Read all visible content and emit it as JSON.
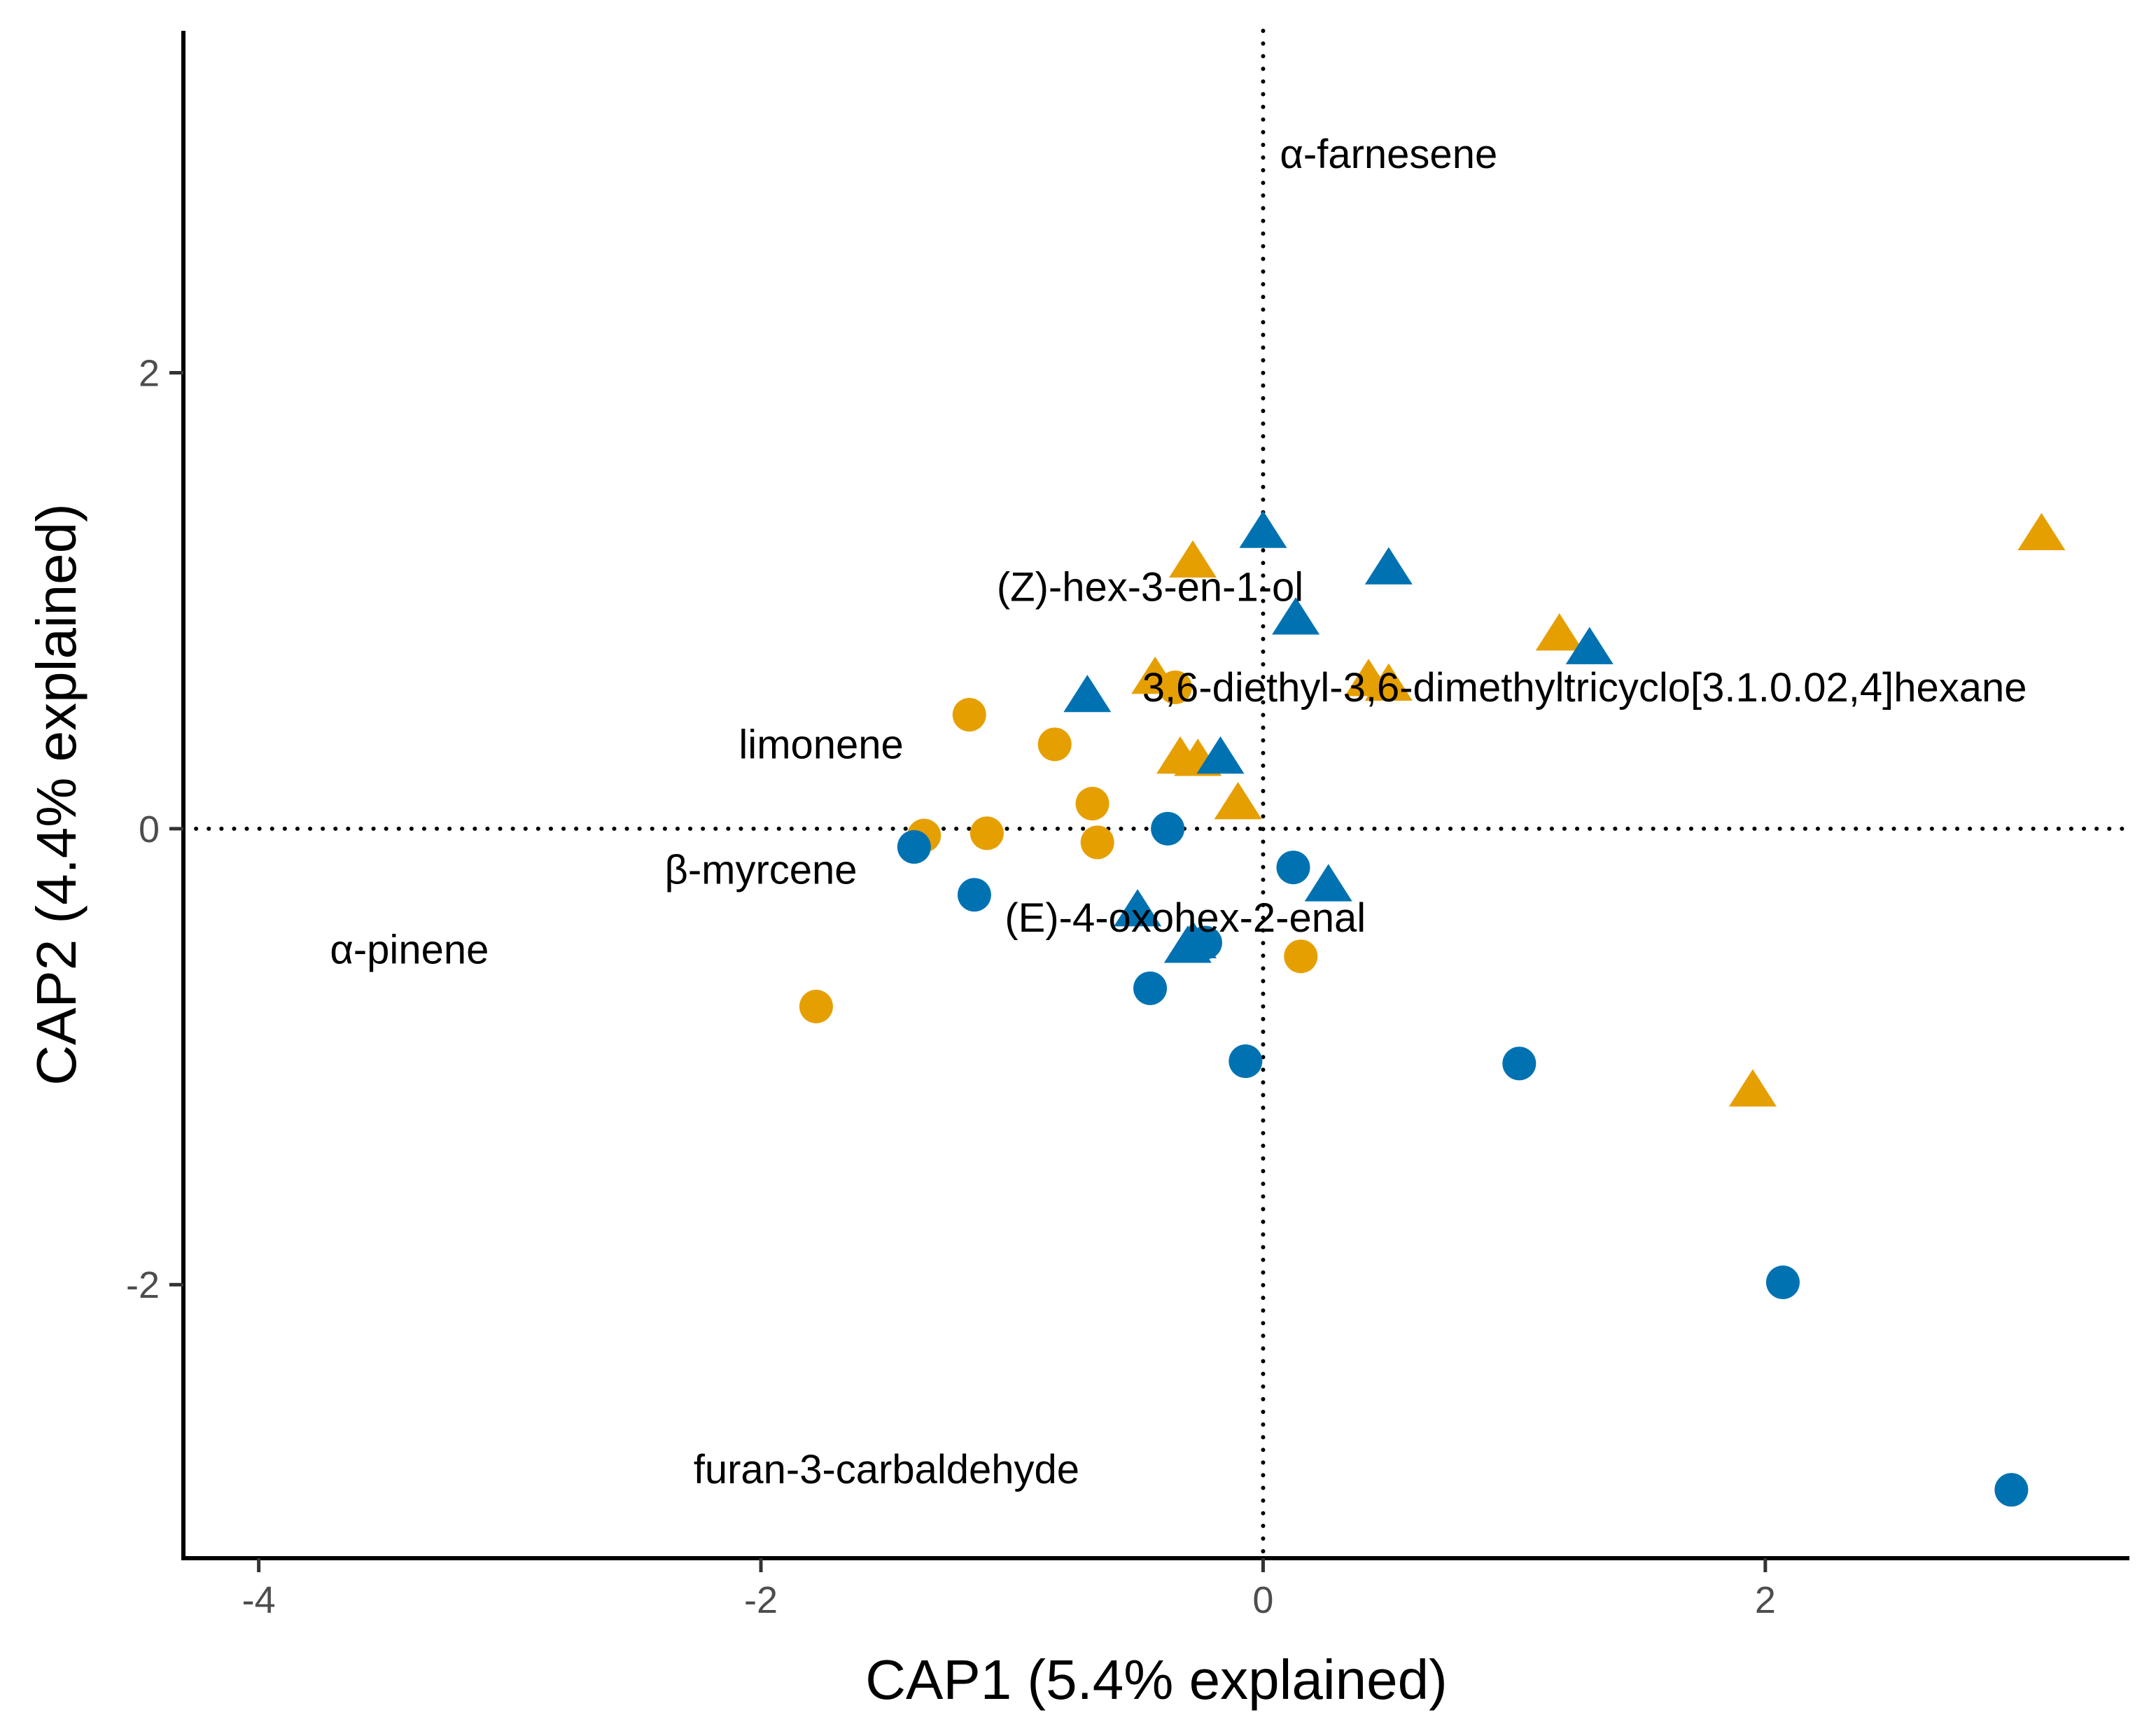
{
  "colors": {
    "orange": "#E69F00",
    "blue": "#0072B2",
    "axis": "#000000",
    "tick_text": "#4d4d4d"
  },
  "chart_data": {
    "type": "scatter",
    "title": "",
    "xlabel": "CAP1 (5.4% explained)",
    "ylabel": "CAP2 (4.4% explained)",
    "xlim": [
      -4.3,
      3.45
    ],
    "ylim": [
      -3.2,
      3.5
    ],
    "xticks": [
      -4,
      -2,
      0,
      2
    ],
    "xtick_labels": [
      "-4",
      "-2",
      "0",
      "2"
    ],
    "yticks": [
      -2,
      0,
      2
    ],
    "ytick_labels": [
      "-2",
      "0",
      "2"
    ],
    "grid": false,
    "reference_lines": {
      "x": 0,
      "y": 0,
      "style": "dotted"
    },
    "legend": "none",
    "series": [
      {
        "color": "#E69F00",
        "marker": "circle",
        "points": [
          [
            -1.17,
            0.5
          ],
          [
            -0.83,
            0.37
          ],
          [
            -0.35,
            0.62
          ],
          [
            -0.68,
            0.11
          ],
          [
            -1.35,
            -0.03
          ],
          [
            -1.1,
            -0.02
          ],
          [
            -0.66,
            -0.06
          ],
          [
            0.15,
            -0.56
          ],
          [
            -1.78,
            -0.78
          ]
        ]
      },
      {
        "color": "#E69F00",
        "marker": "triangle",
        "points": [
          [
            -0.28,
            1.17
          ],
          [
            1.18,
            0.85
          ],
          [
            3.1,
            1.29
          ],
          [
            -0.43,
            0.66
          ],
          [
            0.42,
            0.65
          ],
          [
            0.5,
            0.63
          ],
          [
            -0.33,
            0.31
          ],
          [
            -0.26,
            0.3
          ],
          [
            -0.1,
            0.11
          ],
          [
            1.95,
            -1.15
          ]
        ]
      },
      {
        "color": "#0072B2",
        "marker": "circle",
        "points": [
          [
            -0.38,
            0.0
          ],
          [
            -1.39,
            -0.08
          ],
          [
            0.12,
            -0.17
          ],
          [
            -1.15,
            -0.29
          ],
          [
            -0.23,
            -0.5
          ],
          [
            -0.45,
            -0.7
          ],
          [
            -0.07,
            -1.02
          ],
          [
            1.02,
            -1.03
          ],
          [
            2.07,
            -1.99
          ],
          [
            2.98,
            -2.9
          ]
        ]
      },
      {
        "color": "#0072B2",
        "marker": "triangle",
        "points": [
          [
            0.0,
            1.3
          ],
          [
            0.5,
            1.14
          ],
          [
            0.13,
            0.92
          ],
          [
            1.3,
            0.79
          ],
          [
            -0.7,
            0.58
          ],
          [
            -0.17,
            0.31
          ],
          [
            0.26,
            -0.25
          ],
          [
            -0.5,
            -0.36
          ],
          [
            -0.28,
            -0.5
          ],
          [
            -0.3,
            -0.52
          ]
        ]
      }
    ],
    "annotations": [
      {
        "text": "α-farnesene",
        "x": 0.5,
        "y": 2.96
      },
      {
        "text": "(Z)-hex-3-en-1-ol",
        "x": -0.45,
        "y": 1.06
      },
      {
        "text": "3,6-diethyl-3,6-dimethyltricyclo[3.1.0.02,4]hexane",
        "x": 1.28,
        "y": 0.62
      },
      {
        "text": "limonene",
        "x": -1.76,
        "y": 0.37
      },
      {
        "text": "β-myrcene",
        "x": -2.0,
        "y": -0.18
      },
      {
        "text": "(E)-4-oxohex-2-enal",
        "x": -0.31,
        "y": -0.39
      },
      {
        "text": "α-pinene",
        "x": -3.4,
        "y": -0.53
      },
      {
        "text": "furan-3-carbaldehyde",
        "x": -1.5,
        "y": -2.81
      }
    ]
  }
}
